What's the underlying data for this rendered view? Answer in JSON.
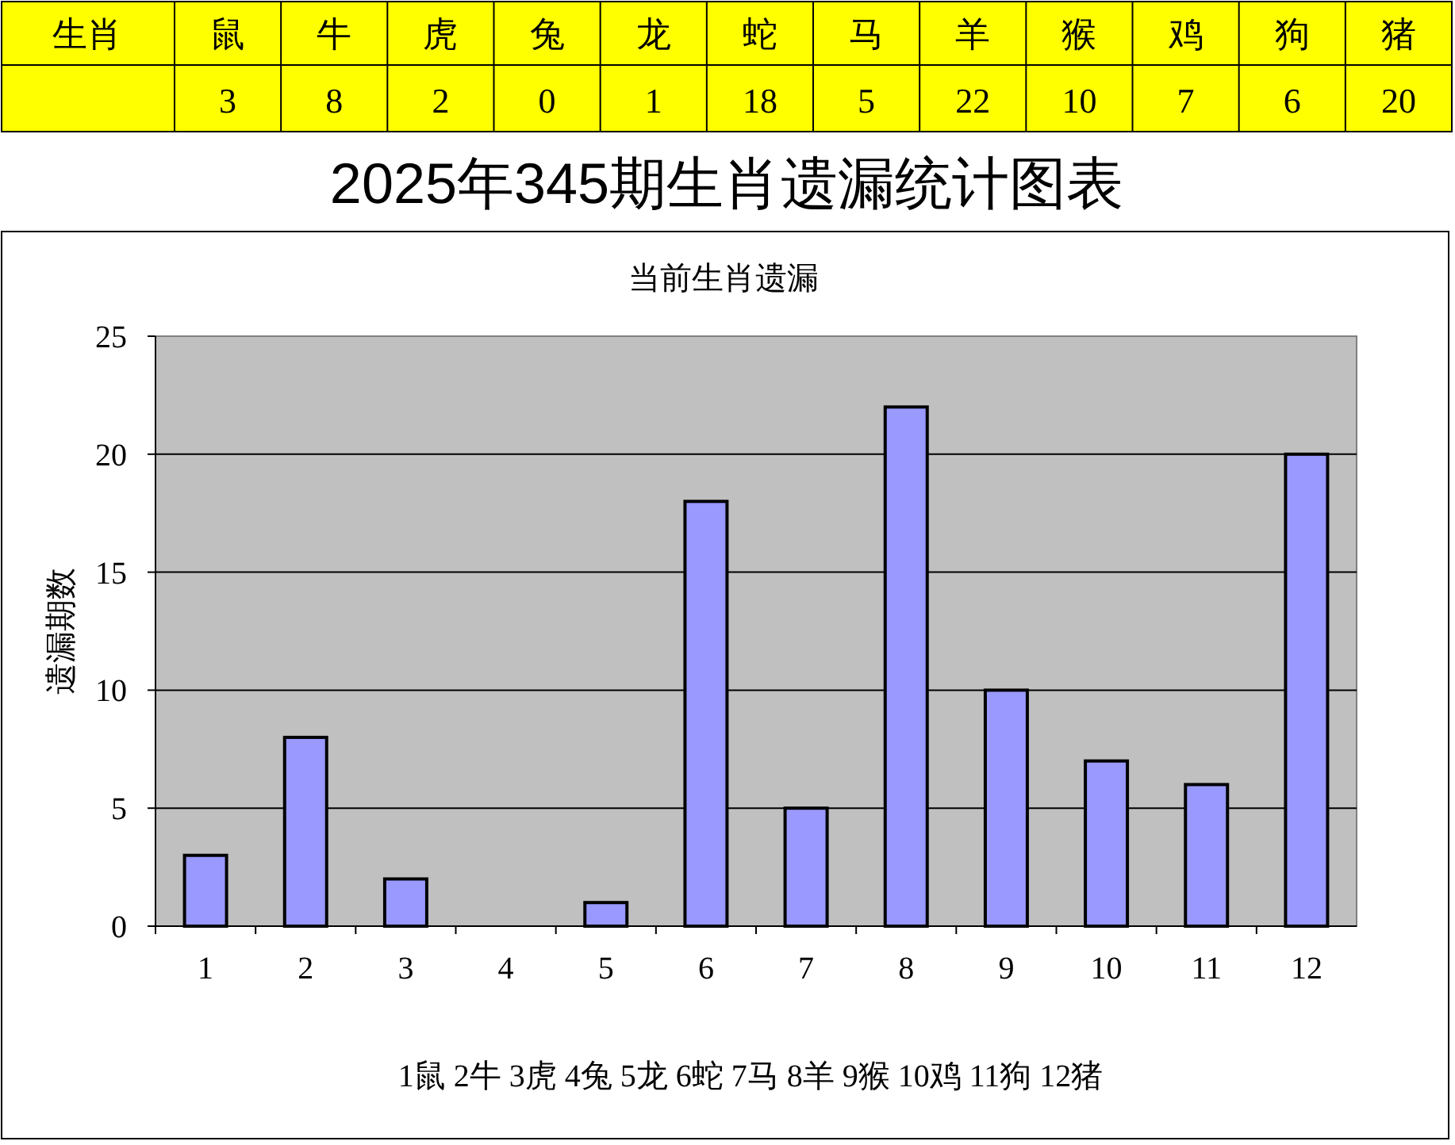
{
  "chart_data": [
    {
      "type": "other",
      "title": "生肖",
      "categories": [
        "鼠",
        "牛",
        "虎",
        "兔",
        "龙",
        "蛇",
        "马",
        "羊",
        "猴",
        "鸡",
        "狗",
        "猪"
      ],
      "values": [
        3,
        8,
        2,
        0,
        1,
        18,
        5,
        22,
        10,
        7,
        6,
        20
      ],
      "data_labels": true,
      "color": "#ffff00"
    },
    {
      "type": "bar",
      "title": "2025年345期生肖遗漏统计图表",
      "subtitle": "当前生肖遗漏",
      "ylabel": "遗漏期数",
      "categories": [
        "1",
        "2",
        "3",
        "4",
        "5",
        "6",
        "7",
        "8",
        "9",
        "10",
        "11",
        "12"
      ],
      "values": [
        3,
        8,
        2,
        0,
        1,
        18,
        5,
        22,
        10,
        7,
        6,
        20
      ],
      "color": "#9999ff",
      "ylim": [
        0,
        25
      ],
      "yticks": [
        0,
        5,
        10,
        15,
        20,
        25
      ],
      "grid": "y",
      "annotations": [
        "1鼠 2牛 3虎 4兔 5龙 6蛇 7马 8羊 9猴 10鸡 11狗 12猪"
      ]
    }
  ]
}
